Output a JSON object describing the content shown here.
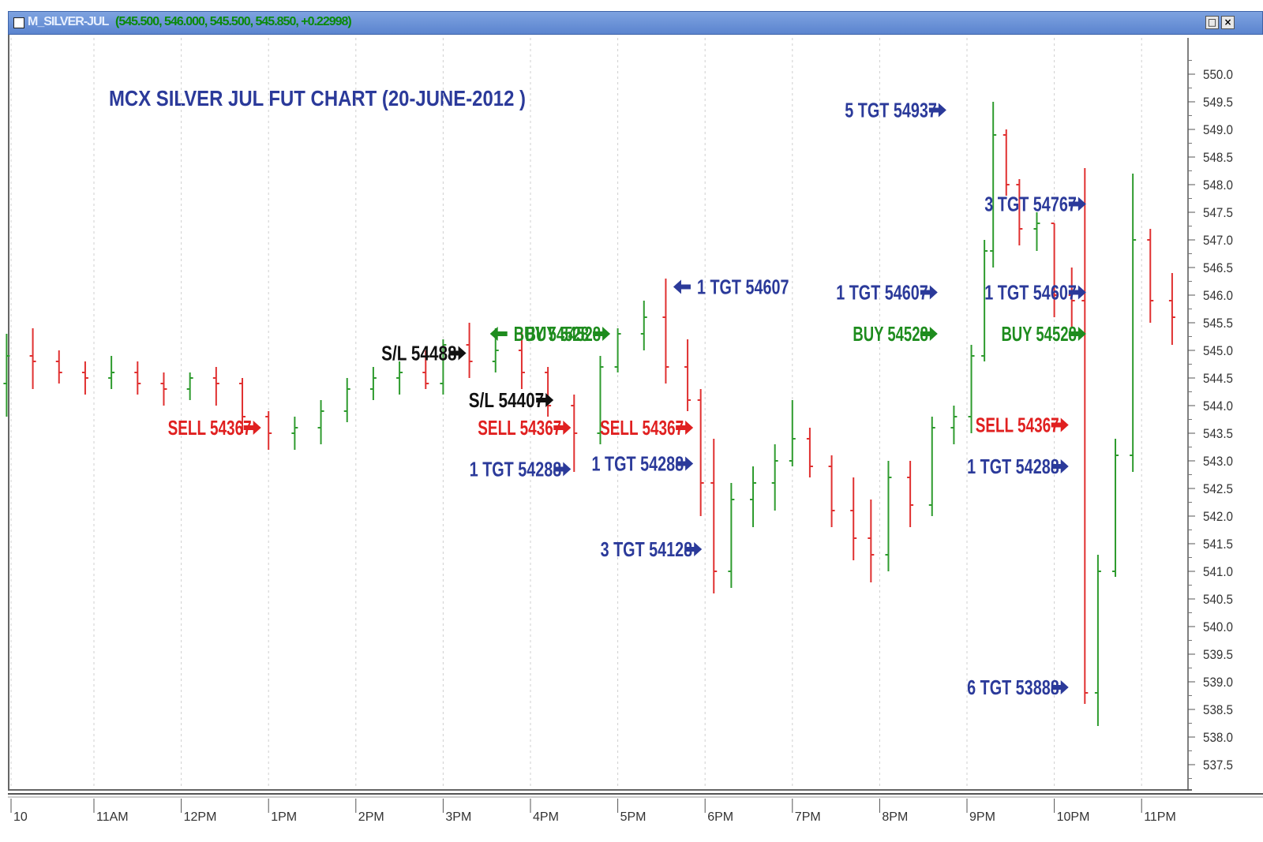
{
  "window": {
    "symbol": "M_SILVER-JUL",
    "ohlc_text": "(545.500, 546.000, 545.500, 545.850, +0.22998)",
    "restore_icon": "restore-icon",
    "close_icon": "close-icon"
  },
  "chart_data": {
    "type": "candlestick",
    "title": "MCX SILVER JUL FUT CHART (20-JUNE-2012 )",
    "ylim": [
      537.0,
      550.5
    ],
    "y_ticks": [
      "550.0",
      "549.5",
      "549.0",
      "548.5",
      "548.0",
      "547.5",
      "547.0",
      "546.5",
      "546.0",
      "545.5",
      "545.0",
      "544.5",
      "544.0",
      "543.5",
      "543.0",
      "542.5",
      "542.0",
      "541.5",
      "541.0",
      "540.5",
      "540.0",
      "539.5",
      "539.0",
      "538.5",
      "538.0",
      "537.5"
    ],
    "x_ticks": [
      "10",
      "11AM",
      "12PM",
      "1PM",
      "2PM",
      "3PM",
      "4PM",
      "5PM",
      "6PM",
      "7PM",
      "8PM",
      "9PM",
      "10PM",
      "11PM"
    ],
    "up_color": "#2e9b2e",
    "down_color": "#e03030",
    "annotations": [
      {
        "text": "SELL 54367",
        "color": "#e02020",
        "arrow": "right",
        "time": 12.95,
        "price": 543.6
      },
      {
        "text": "S/L 54488",
        "color": "#111111",
        "arrow": "right",
        "time": 15.3,
        "price": 544.95
      },
      {
        "text": "BUY 54528",
        "color": "#1e8c1e",
        "arrow": "left",
        "time": 15.5,
        "price": 545.3
      },
      {
        "text": "S/L 54407",
        "color": "#111111",
        "arrow": "right",
        "time": 16.3,
        "price": 544.1
      },
      {
        "text": "SELL 54367",
        "color": "#e02020",
        "arrow": "right",
        "time": 16.5,
        "price": 543.6
      },
      {
        "text": "1 TGT 54288",
        "color": "#2b3a9a",
        "arrow": "right",
        "time": 16.5,
        "price": 542.85
      },
      {
        "text": "BUY 54528",
        "color": "#1e8c1e",
        "arrow": "right",
        "time": 16.95,
        "price": 545.3
      },
      {
        "text": "1 TGT 54607",
        "color": "#2b3a9a",
        "arrow": "left",
        "time": 17.6,
        "price": 546.15
      },
      {
        "text": "SELL 54367",
        "color": "#e02020",
        "arrow": "right",
        "time": 17.9,
        "price": 543.6
      },
      {
        "text": "1 TGT 54288",
        "color": "#2b3a9a",
        "arrow": "right",
        "time": 17.9,
        "price": 542.95
      },
      {
        "text": "3 TGT 54128",
        "color": "#2b3a9a",
        "arrow": "right",
        "time": 18.0,
        "price": 541.4
      },
      {
        "text": "5 TGT 54937",
        "color": "#2b3a9a",
        "arrow": "right",
        "time": 20.8,
        "price": 549.35
      },
      {
        "text": "1 TGT 54607",
        "color": "#2b3a9a",
        "arrow": "right",
        "time": 20.7,
        "price": 546.05
      },
      {
        "text": "BUY 54528",
        "color": "#1e8c1e",
        "arrow": "right",
        "time": 20.7,
        "price": 545.3
      },
      {
        "text": "3 TGT 54767",
        "color": "#2b3a9a",
        "arrow": "right",
        "time": 22.4,
        "price": 547.65
      },
      {
        "text": "1 TGT 54607",
        "color": "#2b3a9a",
        "arrow": "right",
        "time": 22.4,
        "price": 546.05
      },
      {
        "text": "BUY 54528",
        "color": "#1e8c1e",
        "arrow": "right",
        "time": 22.4,
        "price": 545.3
      },
      {
        "text": "SELL 54367",
        "color": "#e02020",
        "arrow": "right",
        "time": 22.2,
        "price": 543.65
      },
      {
        "text": "1 TGT 54288",
        "color": "#2b3a9a",
        "arrow": "right",
        "time": 22.2,
        "price": 542.9
      },
      {
        "text": "6 TGT 53888",
        "color": "#2b3a9a",
        "arrow": "right",
        "time": 22.2,
        "price": 538.9
      }
    ],
    "series": [
      {
        "t": 10.0,
        "low": 543.8,
        "high": 545.3,
        "open": 544.4,
        "close": 544.9
      },
      {
        "t": 10.3,
        "low": 544.3,
        "high": 545.4,
        "open": 544.9,
        "close": 544.8
      },
      {
        "t": 10.6,
        "low": 544.4,
        "high": 545.0,
        "open": 544.8,
        "close": 544.6
      },
      {
        "t": 10.9,
        "low": 544.2,
        "high": 544.8,
        "open": 544.6,
        "close": 544.5
      },
      {
        "t": 11.2,
        "low": 544.3,
        "high": 544.9,
        "open": 544.5,
        "close": 544.6
      },
      {
        "t": 11.5,
        "low": 544.2,
        "high": 544.8,
        "open": 544.6,
        "close": 544.4
      },
      {
        "t": 11.8,
        "low": 544.0,
        "high": 544.6,
        "open": 544.4,
        "close": 544.3
      },
      {
        "t": 12.1,
        "low": 544.1,
        "high": 544.6,
        "open": 544.3,
        "close": 544.5
      },
      {
        "t": 12.4,
        "low": 544.0,
        "high": 544.7,
        "open": 544.5,
        "close": 544.4
      },
      {
        "t": 12.7,
        "low": 543.5,
        "high": 544.5,
        "open": 544.4,
        "close": 543.8
      },
      {
        "t": 13.0,
        "low": 543.2,
        "high": 543.9,
        "open": 543.8,
        "close": 543.5
      },
      {
        "t": 13.3,
        "low": 543.2,
        "high": 543.8,
        "open": 543.5,
        "close": 543.6
      },
      {
        "t": 13.6,
        "low": 543.3,
        "high": 544.1,
        "open": 543.6,
        "close": 543.9
      },
      {
        "t": 13.9,
        "low": 543.7,
        "high": 544.5,
        "open": 543.9,
        "close": 544.3
      },
      {
        "t": 14.2,
        "low": 544.1,
        "high": 544.7,
        "open": 544.3,
        "close": 544.5
      },
      {
        "t": 14.5,
        "low": 544.2,
        "high": 544.8,
        "open": 544.5,
        "close": 544.6
      },
      {
        "t": 14.8,
        "low": 544.3,
        "high": 545.0,
        "open": 544.6,
        "close": 544.4
      },
      {
        "t": 15.0,
        "low": 544.2,
        "high": 545.2,
        "open": 544.4,
        "close": 545.1
      },
      {
        "t": 15.3,
        "low": 544.5,
        "high": 545.5,
        "open": 545.1,
        "close": 544.8
      },
      {
        "t": 15.6,
        "low": 544.6,
        "high": 545.4,
        "open": 544.8,
        "close": 545.0
      },
      {
        "t": 15.9,
        "low": 544.3,
        "high": 545.4,
        "open": 545.0,
        "close": 544.6
      },
      {
        "t": 16.2,
        "low": 543.8,
        "high": 544.7,
        "open": 544.6,
        "close": 544.0
      },
      {
        "t": 16.5,
        "low": 542.8,
        "high": 544.2,
        "open": 544.0,
        "close": 543.5
      },
      {
        "t": 16.8,
        "low": 543.3,
        "high": 544.9,
        "open": 543.5,
        "close": 544.7
      },
      {
        "t": 17.0,
        "low": 544.6,
        "high": 545.4,
        "open": 544.7,
        "close": 545.3
      },
      {
        "t": 17.3,
        "low": 545.0,
        "high": 545.9,
        "open": 545.3,
        "close": 545.6
      },
      {
        "t": 17.55,
        "low": 544.4,
        "high": 546.3,
        "open": 545.6,
        "close": 544.7
      },
      {
        "t": 17.8,
        "low": 543.9,
        "high": 545.2,
        "open": 544.7,
        "close": 544.1
      },
      {
        "t": 17.95,
        "low": 542.0,
        "high": 544.3,
        "open": 544.1,
        "close": 542.6
      },
      {
        "t": 18.1,
        "low": 540.6,
        "high": 543.4,
        "open": 542.6,
        "close": 541.0
      },
      {
        "t": 18.3,
        "low": 540.7,
        "high": 542.6,
        "open": 541.0,
        "close": 542.3
      },
      {
        "t": 18.55,
        "low": 541.8,
        "high": 542.9,
        "open": 542.3,
        "close": 542.6
      },
      {
        "t": 18.8,
        "low": 542.1,
        "high": 543.3,
        "open": 542.6,
        "close": 543.0
      },
      {
        "t": 19.0,
        "low": 542.9,
        "high": 544.1,
        "open": 543.0,
        "close": 543.4
      },
      {
        "t": 19.2,
        "low": 542.7,
        "high": 543.6,
        "open": 543.4,
        "close": 542.9
      },
      {
        "t": 19.45,
        "low": 541.8,
        "high": 543.1,
        "open": 542.9,
        "close": 542.1
      },
      {
        "t": 19.7,
        "low": 541.2,
        "high": 542.7,
        "open": 542.1,
        "close": 541.6
      },
      {
        "t": 19.9,
        "low": 540.8,
        "high": 542.3,
        "open": 541.6,
        "close": 541.3
      },
      {
        "t": 20.1,
        "low": 541.0,
        "high": 543.0,
        "open": 541.3,
        "close": 542.7
      },
      {
        "t": 20.35,
        "low": 541.8,
        "high": 543.0,
        "open": 542.7,
        "close": 542.2
      },
      {
        "t": 20.6,
        "low": 542.0,
        "high": 543.8,
        "open": 542.2,
        "close": 543.6
      },
      {
        "t": 20.85,
        "low": 543.3,
        "high": 544.0,
        "open": 543.6,
        "close": 543.8
      },
      {
        "t": 21.05,
        "low": 543.5,
        "high": 545.1,
        "open": 543.8,
        "close": 544.9
      },
      {
        "t": 21.2,
        "low": 544.8,
        "high": 547.0,
        "open": 544.9,
        "close": 546.8
      },
      {
        "t": 21.3,
        "low": 546.5,
        "high": 549.5,
        "open": 546.8,
        "close": 548.9
      },
      {
        "t": 21.45,
        "low": 547.8,
        "high": 549.0,
        "open": 548.9,
        "close": 548.0
      },
      {
        "t": 21.6,
        "low": 546.9,
        "high": 548.1,
        "open": 548.0,
        "close": 547.2
      },
      {
        "t": 21.8,
        "low": 546.8,
        "high": 547.5,
        "open": 547.2,
        "close": 547.3
      },
      {
        "t": 22.0,
        "low": 545.6,
        "high": 547.3,
        "open": 547.3,
        "close": 546.0
      },
      {
        "t": 22.2,
        "low": 545.4,
        "high": 546.5,
        "open": 546.0,
        "close": 545.9
      },
      {
        "t": 22.35,
        "low": 538.6,
        "high": 548.3,
        "open": 545.9,
        "close": 538.8
      },
      {
        "t": 22.5,
        "low": 538.2,
        "high": 541.3,
        "open": 538.8,
        "close": 541.0
      },
      {
        "t": 22.7,
        "low": 540.9,
        "high": 543.4,
        "open": 541.0,
        "close": 543.1
      },
      {
        "t": 22.9,
        "low": 542.8,
        "high": 548.2,
        "open": 543.1,
        "close": 547.0
      },
      {
        "t": 23.1,
        "low": 545.5,
        "high": 547.2,
        "open": 547.0,
        "close": 545.9
      },
      {
        "t": 23.35,
        "low": 545.1,
        "high": 546.4,
        "open": 545.9,
        "close": 545.6
      }
    ]
  }
}
